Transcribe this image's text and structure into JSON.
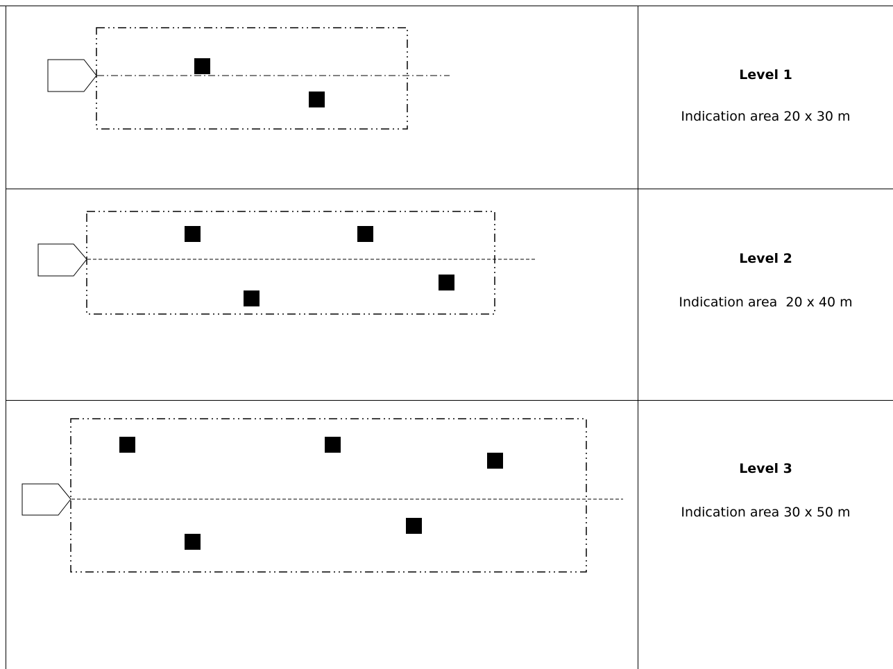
{
  "levels": [
    {
      "title": "Level 1",
      "description": "Indication area 20 x 30 m",
      "marker_count": 2
    },
    {
      "title": "Level 2",
      "description": "Indication area  20 x 40 m",
      "marker_count": 4
    },
    {
      "title": "Level 3",
      "description": "Indication area 30 x 50 m",
      "marker_count": 5
    }
  ],
  "colors": {
    "line": "#000000",
    "marker": "#000000",
    "background": "#ffffff"
  }
}
